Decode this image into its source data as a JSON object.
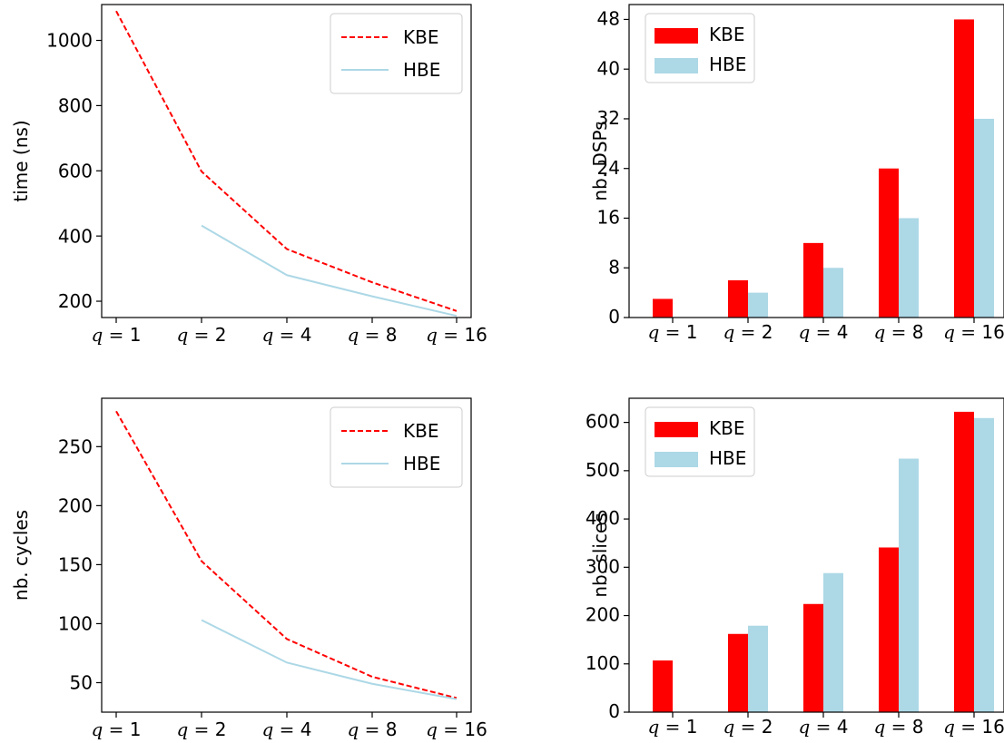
{
  "colors": {
    "kbe": "#ff0000",
    "hbe": "#add8e6",
    "axis": "#000000"
  },
  "chart_data": [
    {
      "id": "time",
      "type": "line",
      "categories": [
        "q = 1",
        "q = 2",
        "q = 4",
        "q = 8",
        "q = 16"
      ],
      "ylabel": "time (ns)",
      "ylim": [
        150,
        1110
      ],
      "yticks": [
        200,
        400,
        600,
        800,
        1000
      ],
      "legend_position": "top-right",
      "series": [
        {
          "name": "KBE",
          "style": "dashed",
          "values": [
            1090,
            598,
            360,
            258,
            170
          ]
        },
        {
          "name": "HBE",
          "style": "solid",
          "values": [
            null,
            432,
            280,
            215,
            155
          ]
        }
      ]
    },
    {
      "id": "dsps",
      "type": "bar",
      "categories": [
        "q = 1",
        "q = 2",
        "q = 4",
        "q = 8",
        "q = 16"
      ],
      "ylabel": "nb. DSPs",
      "ylim": [
        0,
        50.4
      ],
      "yticks": [
        0,
        8,
        16,
        24,
        32,
        40,
        48
      ],
      "legend_position": "top-left",
      "series": [
        {
          "name": "KBE",
          "values": [
            3,
            6,
            12,
            24,
            48
          ]
        },
        {
          "name": "HBE",
          "values": [
            0,
            4,
            8,
            16,
            32
          ]
        }
      ]
    },
    {
      "id": "cycles",
      "type": "line",
      "categories": [
        "q = 1",
        "q = 2",
        "q = 4",
        "q = 8",
        "q = 16"
      ],
      "ylabel": "nb. cycles",
      "ylim": [
        25,
        291
      ],
      "yticks": [
        50,
        100,
        150,
        200,
        250
      ],
      "legend_position": "top-right",
      "series": [
        {
          "name": "KBE",
          "style": "dashed",
          "values": [
            280,
            153,
            87,
            55,
            37
          ]
        },
        {
          "name": "HBE",
          "style": "solid",
          "values": [
            null,
            103,
            67,
            49,
            36
          ]
        }
      ]
    },
    {
      "id": "slices",
      "type": "bar",
      "categories": [
        "q = 1",
        "q = 2",
        "q = 4",
        "q = 8",
        "q = 16"
      ],
      "ylabel": "nb. slices",
      "ylim": [
        0,
        650
      ],
      "yticks": [
        0,
        100,
        200,
        300,
        400,
        500,
        600
      ],
      "legend_position": "top-left",
      "series": [
        {
          "name": "KBE",
          "values": [
            107,
            162,
            224,
            341,
            622
          ]
        },
        {
          "name": "HBE",
          "values": [
            0,
            179,
            288,
            525,
            609
          ]
        }
      ]
    }
  ]
}
